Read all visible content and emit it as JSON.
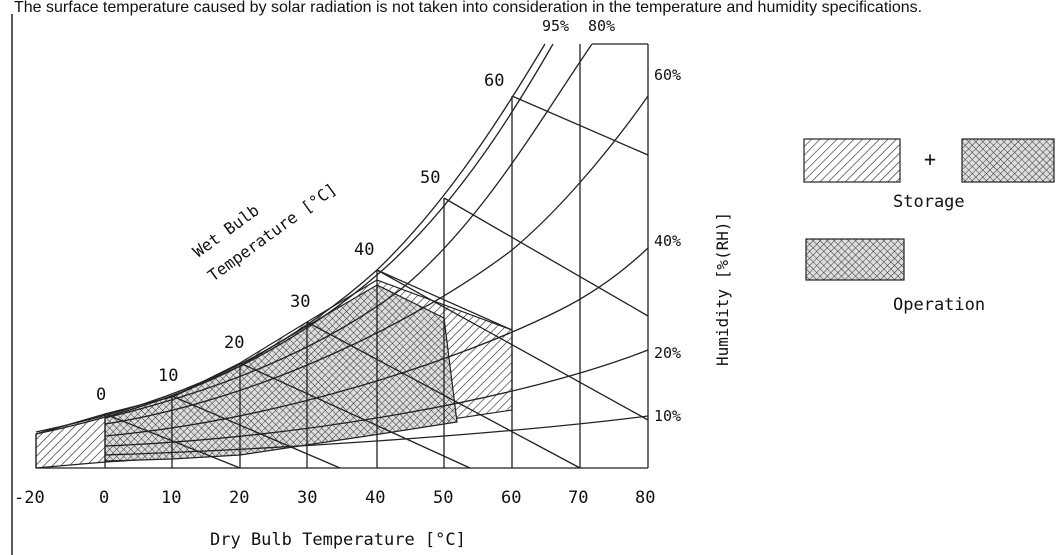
{
  "caption": "The surface temperature caused by solar radiation is not taken into consideration in the temperature and humidity specifications.",
  "axes": {
    "x_label": "Dry Bulb Temperature [°C]",
    "y_label": "Humidity [%(RH)]",
    "x_ticks": [
      "-20",
      "0",
      "10",
      "20",
      "30",
      "40",
      "50",
      "60",
      "70",
      "80"
    ],
    "rh_labels": [
      "95%",
      "80%",
      "60%",
      "40%",
      "20%",
      "10%"
    ],
    "wet_bulb_label_line1": "Wet Bulb",
    "wet_bulb_label_line2": "Temperature [°C]",
    "wet_bulb_ticks": [
      "0",
      "10",
      "20",
      "30",
      "40",
      "50",
      "60"
    ]
  },
  "legend": {
    "plus": "+",
    "storage_label": "Storage",
    "operation_label": "Operation"
  }
}
